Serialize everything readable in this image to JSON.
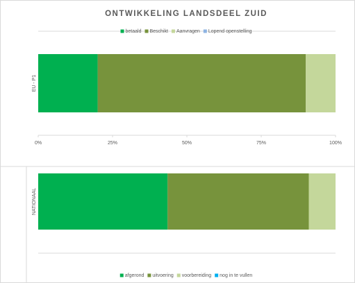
{
  "chart_data": [
    {
      "type": "bar",
      "orientation": "horizontal",
      "stacked": true,
      "title": "ONTWIKKELING LANDSDEEL ZUID",
      "categories": [
        "EU - P1"
      ],
      "series": [
        {
          "name": "betaald",
          "color": "#00b050",
          "values": [
            20
          ]
        },
        {
          "name": "Beschikt",
          "color": "#77933c",
          "values": [
            70
          ]
        },
        {
          "name": "Aanvragen",
          "color": "#c4d79b",
          "values": [
            10
          ]
        },
        {
          "name": "Lopend openstelling",
          "color": "#8eb4e3",
          "values": [
            0
          ]
        }
      ],
      "xlim": [
        0,
        100
      ],
      "xticks": [
        {
          "value": 0,
          "label": "0%"
        },
        {
          "value": 25,
          "label": "25%"
        },
        {
          "value": 50,
          "label": "50%"
        },
        {
          "value": 75,
          "label": "75%"
        },
        {
          "value": 100,
          "label": "100%"
        }
      ],
      "legend": "top"
    },
    {
      "type": "bar",
      "orientation": "horizontal",
      "stacked": true,
      "categories": [
        "NATIONAAL"
      ],
      "series": [
        {
          "name": "afgerond",
          "color": "#00b050",
          "values": [
            43.5
          ]
        },
        {
          "name": "uitvoering",
          "color": "#77933c",
          "values": [
            47.5
          ]
        },
        {
          "name": "voorbereiding",
          "color": "#c4d79b",
          "values": [
            9
          ]
        },
        {
          "name": "nog in te vullen",
          "color": "#00b0f0",
          "values": [
            0
          ]
        }
      ],
      "xlim": [
        0,
        100
      ],
      "legend": "bottom"
    }
  ]
}
